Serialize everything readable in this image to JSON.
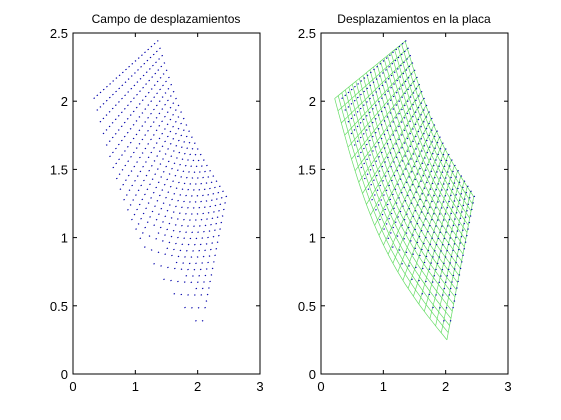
{
  "chart_data": [
    {
      "type": "scatter",
      "title": "Campo de desplazamientos",
      "xlabel": "",
      "ylabel": "",
      "xlim": [
        0,
        3
      ],
      "ylim": [
        0,
        2.5
      ],
      "xticks": [
        "0",
        "1",
        "2",
        "3"
      ],
      "yticks": [
        "0",
        "0.5",
        "1",
        "1.5",
        "2",
        "2.5"
      ],
      "grid": false,
      "series": [
        {
          "color": "#0000aa",
          "marker": "dot",
          "corners": {
            "inner_top": [
              0.33,
              2.02
            ],
            "outer_top": [
              1.35,
              2.44
            ],
            "outer_right": [
              2.45,
              1.3
            ],
            "inner_bottom": [
              2.05,
              0.34
            ]
          },
          "grid_size": [
            26,
            21
          ]
        }
      ]
    },
    {
      "type": "line",
      "title": "Desplazamientos en la placa",
      "xlabel": "",
      "ylabel": "",
      "xlim": [
        0,
        3
      ],
      "ylim": [
        0,
        2.5
      ],
      "xticks": [
        "0",
        "1",
        "2",
        "3"
      ],
      "yticks": [
        "0",
        "0.5",
        "1",
        "1.5",
        "2",
        "2.5"
      ],
      "grid": false,
      "series": [
        {
          "color": "#66dd66",
          "marker": "mesh",
          "corners": {
            "inner_top": [
              0.22,
              2.02
            ],
            "outer_top": [
              1.35,
              2.44
            ],
            "outer_right": [
              2.45,
              1.3
            ],
            "inner_bottom": [
              2.02,
              0.25
            ]
          },
          "grid_size": [
            26,
            21
          ]
        },
        {
          "color": "#0000aa",
          "marker": "dot",
          "corners": {
            "inner_top": [
              0.33,
              2.02
            ],
            "outer_top": [
              1.35,
              2.44
            ],
            "outer_right": [
              2.45,
              1.3
            ],
            "inner_bottom": [
              2.05,
              0.34
            ]
          },
          "grid_size": [
            26,
            21
          ]
        }
      ]
    }
  ]
}
